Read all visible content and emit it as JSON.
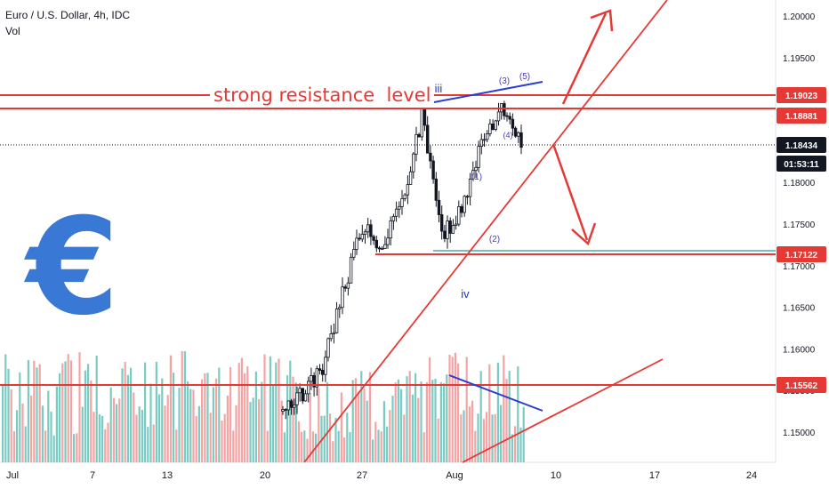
{
  "header": {
    "symbol_title": "Euro / U.S. Dollar, 4h, IDC",
    "volume_label": "Vol"
  },
  "annotation": {
    "resistance_text": "strong resistance  level"
  },
  "price_scale": {
    "ticks": [
      "1.20000",
      "1.19500",
      "1.19000",
      "1.18500",
      "1.18000",
      "1.17500",
      "1.17000",
      "1.16500",
      "1.16000",
      "1.15500",
      "1.15000"
    ],
    "badges": [
      {
        "text": "1.19023",
        "kind": "red"
      },
      {
        "text": "1.18881",
        "kind": "red"
      },
      {
        "text": "1.18434",
        "kind": "dark"
      },
      {
        "text": "01:53:11",
        "kind": "dark-timer"
      },
      {
        "text": "1.17122",
        "kind": "red"
      },
      {
        "text": "1.15562",
        "kind": "red"
      }
    ]
  },
  "time_scale": {
    "ticks": [
      "Jul",
      "7",
      "13",
      "20",
      "27",
      "Aug",
      "10",
      "17",
      "24"
    ]
  },
  "wave_labels": [
    {
      "text": "iii",
      "color": "#1e3bb3"
    },
    {
      "text": "iv",
      "color": "#1e3bb3"
    },
    {
      "text": "(1)",
      "color": "#4b3fb0"
    },
    {
      "text": "(2)",
      "color": "#4b3fb0"
    },
    {
      "text": "(3)",
      "color": "#4b3fb0"
    },
    {
      "text": "(4)",
      "color": "#4b3fb0"
    },
    {
      "text": "(5)",
      "color": "#4b3fb0"
    }
  ],
  "colors": {
    "resistance_line": "#e53935",
    "trend_line": "#e53935",
    "wedge_line": "#2b3bd6",
    "candle": "#131722",
    "volume_up": "#7ccbc3",
    "volume_down": "#f5a3a3",
    "euro_symbol": "#3a78d6",
    "support_teal": "#4fa8a0"
  },
  "icons": {
    "logo": "euro-symbol-icon"
  },
  "chart_data": {
    "type": "candlestick",
    "instrument": "Euro / U.S. Dollar",
    "timeframe": "4h",
    "source": "IDC",
    "y_axis_range": [
      1.1465,
      1.2035
    ],
    "current_price": 1.18434,
    "countdown": "01:53:11",
    "horizontal_levels": [
      1.19023,
      1.18881,
      1.17122,
      1.15562
    ],
    "close_path": [
      {
        "date": "Jul 22",
        "close": 1.1525
      },
      {
        "date": "Jul 23",
        "close": 1.1545
      },
      {
        "date": "Jul 24",
        "close": 1.158
      },
      {
        "date": "Jul 27",
        "close": 1.1665
      },
      {
        "date": "Jul 28",
        "close": 1.1745
      },
      {
        "date": "Jul 29",
        "close": 1.1725
      },
      {
        "date": "Jul 30",
        "close": 1.1775
      },
      {
        "date": "Jul 31",
        "close": 1.188
      },
      {
        "date": "Aug 3",
        "close": 1.1735
      },
      {
        "date": "Aug 4",
        "close": 1.1765
      },
      {
        "date": "Aug 5",
        "close": 1.185
      },
      {
        "date": "Aug 6",
        "close": 1.1885
      },
      {
        "date": "Aug 7",
        "close": 1.1843
      }
    ]
  }
}
